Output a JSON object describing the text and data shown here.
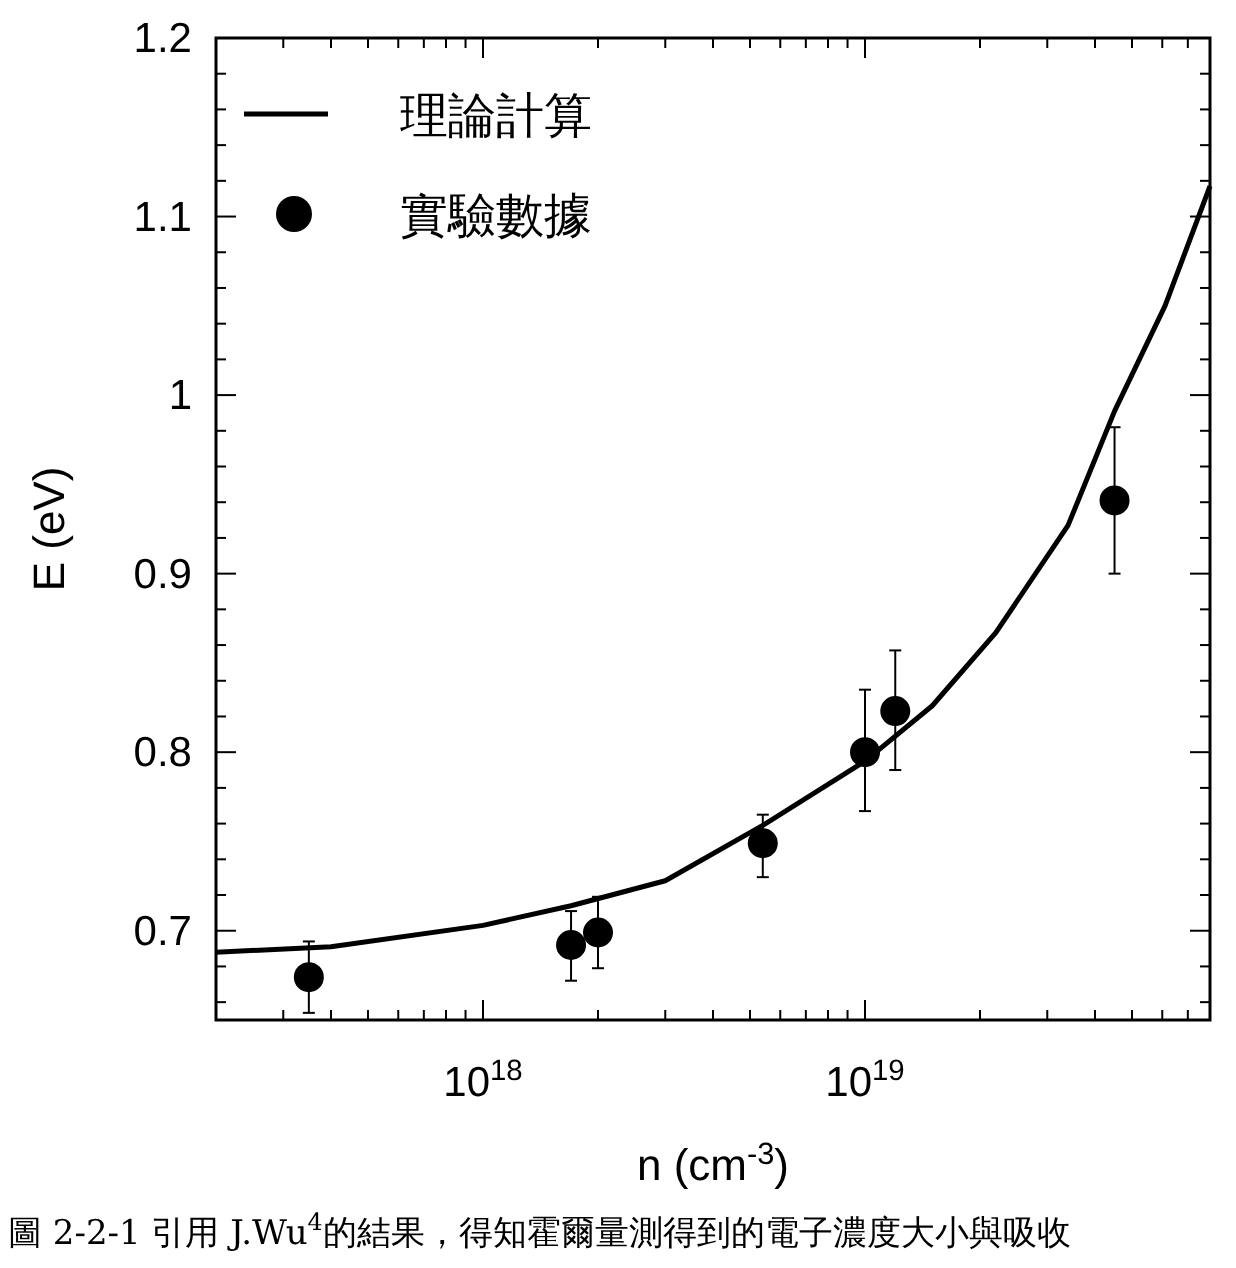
{
  "chart_data": {
    "type": "scatter",
    "xlabel": "n (cm$^{-3}$)",
    "ylabel": "E (eV)",
    "log": "x",
    "legend": "top left",
    "xlim": [
      2e+17,
      8e+19
    ],
    "ylim": [
      0.65,
      1.2
    ],
    "xticks": [
      {
        "value": 3e+17,
        "label": null
      },
      {
        "value": 4e+17,
        "label": null
      },
      {
        "value": 5e+17,
        "label": null
      },
      {
        "value": 6e+17,
        "label": null
      },
      {
        "value": 7e+17,
        "label": null
      },
      {
        "value": 8e+17,
        "label": null
      },
      {
        "value": 9e+17,
        "label": null
      },
      {
        "value": 1e+18,
        "label": "10$^{18}$"
      },
      {
        "value": 2e+18,
        "label": null
      },
      {
        "value": 3e+18,
        "label": null
      },
      {
        "value": 4e+18,
        "label": null
      },
      {
        "value": 5e+18,
        "label": null
      },
      {
        "value": 6e+18,
        "label": null
      },
      {
        "value": 7e+18,
        "label": null
      },
      {
        "value": 8e+18,
        "label": null
      },
      {
        "value": 9e+18,
        "label": null
      },
      {
        "value": 1e+19,
        "label": "10$^{19}$"
      },
      {
        "value": 2e+19,
        "label": null
      },
      {
        "value": 3e+19,
        "label": null
      },
      {
        "value": 4e+19,
        "label": null
      },
      {
        "value": 5e+19,
        "label": null
      },
      {
        "value": 6e+19,
        "label": null
      },
      {
        "value": 7e+19,
        "label": null
      },
      {
        "value": 8e+19,
        "label": null
      }
    ],
    "yticks": [
      {
        "value": 0.66,
        "label": null
      },
      {
        "value": 0.68,
        "label": null
      },
      {
        "value": 0.7,
        "label": "0.7"
      },
      {
        "value": 0.72,
        "label": null
      },
      {
        "value": 0.74,
        "label": null
      },
      {
        "value": 0.76,
        "label": null
      },
      {
        "value": 0.78,
        "label": null
      },
      {
        "value": 0.8,
        "label": "0.8"
      },
      {
        "value": 0.82,
        "label": null
      },
      {
        "value": 0.84,
        "label": null
      },
      {
        "value": 0.86,
        "label": null
      },
      {
        "value": 0.88,
        "label": null
      },
      {
        "value": 0.9,
        "label": "0.9"
      },
      {
        "value": 0.92,
        "label": null
      },
      {
        "value": 0.94,
        "label": null
      },
      {
        "value": 0.96,
        "label": null
      },
      {
        "value": 0.98,
        "label": null
      },
      {
        "value": 1.0,
        "label": "1"
      },
      {
        "value": 1.02,
        "label": null
      },
      {
        "value": 1.04,
        "label": null
      },
      {
        "value": 1.06,
        "label": null
      },
      {
        "value": 1.08,
        "label": null
      },
      {
        "value": 1.1,
        "label": "1.1"
      },
      {
        "value": 1.12,
        "label": null
      },
      {
        "value": 1.14,
        "label": null
      },
      {
        "value": 1.16,
        "label": null
      },
      {
        "value": 1.18,
        "label": null
      },
      {
        "value": 1.2,
        "label": "1.2"
      }
    ],
    "series": [
      {
        "name": "理論計算",
        "type": "line",
        "color": "#000000",
        "x": [
          2e+17,
          4e+17,
          1e+18,
          1.7e+18,
          3e+18,
          5.4e+18,
          1e+19,
          1.5e+19,
          2.2e+19,
          3.4e+19,
          4.5e+19,
          6.1e+19,
          8e+19
        ],
        "values": [
          0.688,
          0.691,
          0.703,
          0.714,
          0.728,
          0.759,
          0.795,
          0.826,
          0.867,
          0.927,
          0.991,
          1.05,
          1.117
        ]
      },
      {
        "name": "實驗數據",
        "marker": "circle",
        "color": "#000000",
        "x": [
          3.5e+17,
          1.7e+18,
          2e+18,
          5.4e+18,
          1e+19,
          1.2e+19,
          4.5e+19
        ],
        "values": [
          0.674,
          0.692,
          0.699,
          0.749,
          0.8,
          0.823,
          0.941
        ],
        "errors": [
          [
            0.654,
            0.694
          ],
          [
            0.672,
            0.711
          ],
          [
            0.679,
            0.719
          ],
          [
            0.73,
            0.765
          ],
          [
            0.767,
            0.835
          ],
          [
            0.79,
            0.857
          ],
          [
            0.9,
            0.982
          ]
        ]
      }
    ],
    "annotations": [
      "圖 2-2-1 引用 J.Wu$^{4}$的結果，得知霍爾量測得到的電子濃度大小與吸收"
    ]
  }
}
